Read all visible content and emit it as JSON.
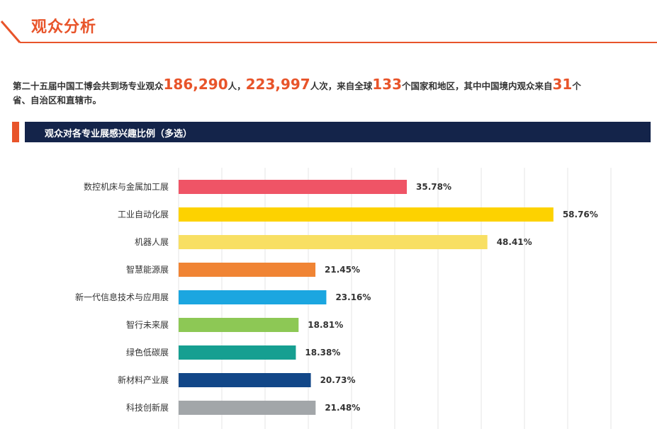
{
  "header": {
    "title": "观众分析"
  },
  "intro": {
    "t1": "第二十五届中国工博会共到场专业观众",
    "n1": "186,290",
    "t2": "人，",
    "n2": "223,997",
    "t3": "人次，来自全球",
    "n3": "133",
    "t4": "个国家和地区，其中中国境内观众来自",
    "n4": "31",
    "t5": "个",
    "t6": "省、自治区和直辖市。"
  },
  "section": {
    "title": "观众对各专业展感兴趣比例（多选）"
  },
  "chart_data": {
    "type": "bar",
    "orientation": "horizontal",
    "categories": [
      "数控机床与金属加工展",
      "工业自动化展",
      "机器人展",
      "智慧能源展",
      "新一代信息技术与应用展",
      "智行未来展",
      "绿色低碳展",
      "新材料产业展",
      "科技创新展"
    ],
    "values": [
      35.78,
      58.76,
      48.41,
      21.45,
      23.16,
      18.81,
      18.38,
      20.73,
      21.48
    ],
    "labels": [
      "35.78%",
      "58.76%",
      "48.41%",
      "21.45%",
      "23.16%",
      "18.81%",
      "18.38%",
      "20.73%",
      "21.48%"
    ],
    "colors": [
      "#ef5466",
      "#fdd200",
      "#f8df63",
      "#f08434",
      "#1ba6e0",
      "#8dc855",
      "#169f91",
      "#124788",
      "#a2a6a9"
    ],
    "xlim": [
      0,
      60
    ],
    "grid": true
  }
}
